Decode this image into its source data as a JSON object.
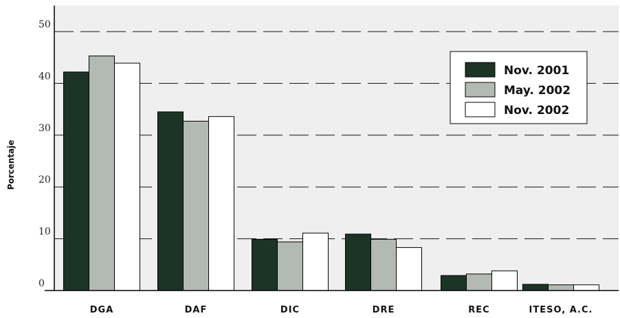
{
  "chart_data": {
    "type": "bar",
    "ylabel": "Porcentaje",
    "xlabel": "",
    "ylim": [
      0,
      50
    ],
    "yticks": [
      0,
      10,
      20,
      30,
      40,
      50
    ],
    "grid": true,
    "legend_position": "top-right",
    "categories": [
      "DGA",
      "DAF",
      "DIC",
      "DRE",
      "REC",
      "ITESO, A.C."
    ],
    "series": [
      {
        "name": "Nov. 2001",
        "color": "#1c3426",
        "values": [
          42.2,
          34.5,
          9.9,
          10.9,
          2.9,
          1.2
        ]
      },
      {
        "name": "May. 2002",
        "color": "#b3bab3",
        "values": [
          45.3,
          32.7,
          9.4,
          9.9,
          3.2,
          1.1
        ]
      },
      {
        "name": "Nov. 2002",
        "color": "#ffffff",
        "values": [
          43.9,
          33.6,
          11.1,
          8.3,
          3.8,
          1.1
        ]
      }
    ]
  }
}
